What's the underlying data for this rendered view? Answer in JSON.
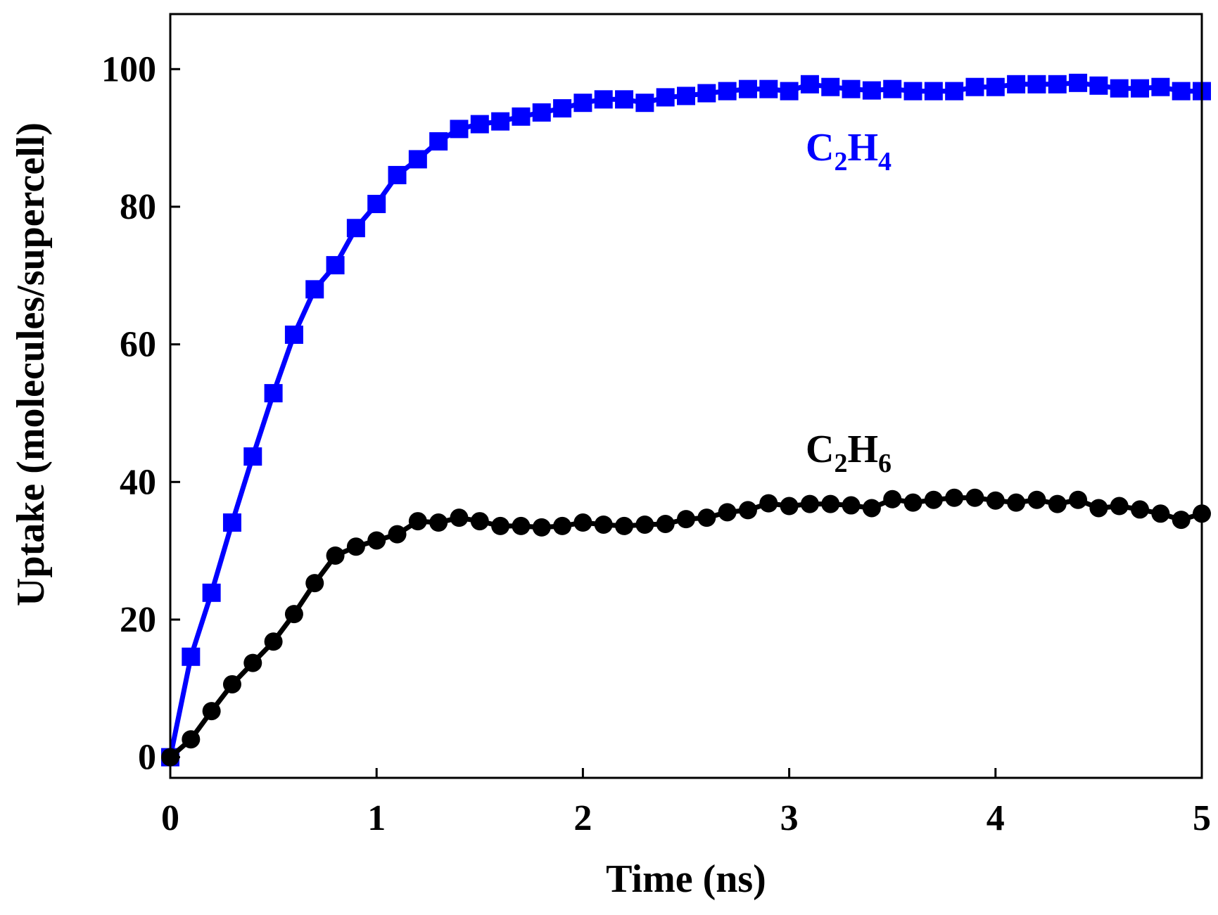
{
  "chart_data": {
    "type": "line",
    "title": "",
    "xlabel": "Time (ns)",
    "ylabel": "Uptake (molecules/supercell)",
    "xlim": [
      0,
      5
    ],
    "ylim": [
      -3,
      108
    ],
    "xticks": [
      0,
      1,
      2,
      3,
      4,
      5
    ],
    "yticks": [
      0,
      20,
      40,
      60,
      80,
      100
    ],
    "grid": false,
    "legend": "none (inline labels)",
    "series": [
      {
        "name": "C2H4",
        "label_main": "C",
        "label_sub1": "2",
        "label_mid": "H",
        "label_sub2": "4",
        "color": "#0000ff",
        "marker": "square",
        "x": [
          0,
          0.1,
          0.2,
          0.3,
          0.4,
          0.5,
          0.6,
          0.7,
          0.8,
          0.9,
          1.0,
          1.1,
          1.2,
          1.3,
          1.4,
          1.5,
          1.6,
          1.7,
          1.8,
          1.9,
          2.0,
          2.1,
          2.2,
          2.3,
          2.4,
          2.5,
          2.6,
          2.7,
          2.8,
          2.9,
          3.0,
          3.1,
          3.2,
          3.3,
          3.4,
          3.5,
          3.6,
          3.7,
          3.8,
          3.9,
          4.0,
          4.1,
          4.2,
          4.3,
          4.4,
          4.5,
          4.6,
          4.7,
          4.8,
          4.9,
          5.0
        ],
        "y": [
          0,
          14.6,
          23.9,
          34.1,
          43.7,
          52.9,
          61.4,
          68.0,
          71.5,
          76.9,
          80.4,
          84.6,
          86.9,
          89.5,
          91.3,
          92.0,
          92.4,
          93.1,
          93.7,
          94.3,
          95.1,
          95.6,
          95.6,
          95.1,
          95.9,
          96.1,
          96.5,
          96.8,
          97.1,
          97.1,
          96.8,
          97.8,
          97.4,
          97.1,
          96.9,
          97.1,
          96.8,
          96.8,
          96.8,
          97.4,
          97.4,
          97.8,
          97.8,
          97.8,
          98.0,
          97.6,
          97.2,
          97.2,
          97.4,
          96.8,
          96.8
        ]
      },
      {
        "name": "C2H6",
        "label_main": "C",
        "label_sub1": "2",
        "label_mid": "H",
        "label_sub2": "6",
        "color": "#000000",
        "marker": "circle",
        "x": [
          0,
          0.1,
          0.2,
          0.3,
          0.4,
          0.5,
          0.6,
          0.7,
          0.8,
          0.9,
          1.0,
          1.1,
          1.2,
          1.3,
          1.4,
          1.5,
          1.6,
          1.7,
          1.8,
          1.9,
          2.0,
          2.1,
          2.2,
          2.3,
          2.4,
          2.5,
          2.6,
          2.7,
          2.8,
          2.9,
          3.0,
          3.1,
          3.2,
          3.3,
          3.4,
          3.5,
          3.6,
          3.7,
          3.8,
          3.9,
          4.0,
          4.1,
          4.2,
          4.3,
          4.4,
          4.5,
          4.6,
          4.7,
          4.8,
          4.9,
          5.0
        ],
        "y": [
          0,
          2.6,
          6.7,
          10.6,
          13.7,
          16.8,
          20.8,
          25.3,
          29.3,
          30.6,
          31.5,
          32.4,
          34.3,
          34.1,
          34.8,
          34.3,
          33.6,
          33.6,
          33.4,
          33.6,
          34.1,
          33.8,
          33.6,
          33.8,
          33.9,
          34.6,
          34.8,
          35.6,
          35.9,
          36.9,
          36.5,
          36.8,
          36.8,
          36.6,
          36.2,
          37.5,
          37.0,
          37.4,
          37.7,
          37.7,
          37.3,
          37.0,
          37.4,
          36.8,
          37.4,
          36.2,
          36.5,
          36.0,
          35.4,
          34.5,
          35.4
        ]
      }
    ]
  }
}
